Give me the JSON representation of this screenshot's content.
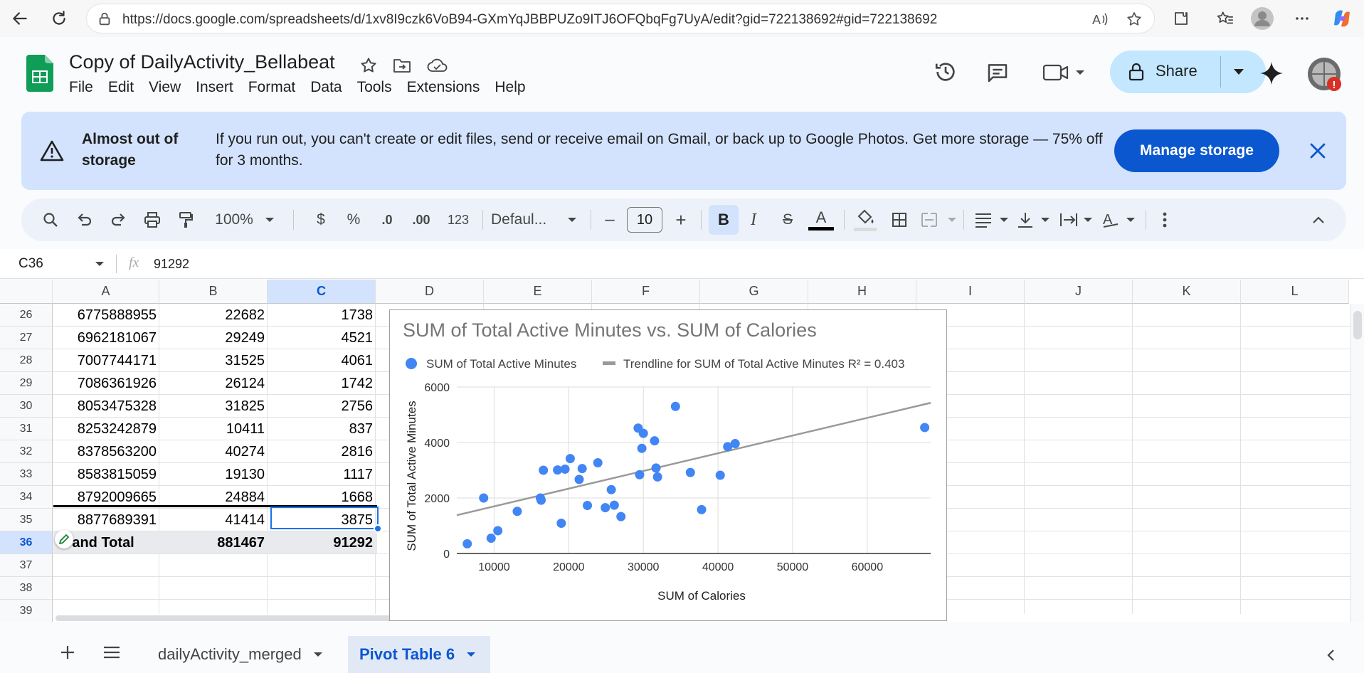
{
  "browser": {
    "url": "https://docs.google.com/spreadsheets/d/1xv8I9czk6VoB94-GXmYqJBBPUZo9ITJ6OFQbqFg7UyA/edit?gid=722138692#gid=722138692"
  },
  "doc": {
    "title": "Copy of DailyActivity_Bellabeat",
    "menu": [
      "File",
      "Edit",
      "View",
      "Insert",
      "Format",
      "Data",
      "Tools",
      "Extensions",
      "Help"
    ],
    "share_label": "Share"
  },
  "banner": {
    "title": "Almost out of storage",
    "message": "If you run out, you can't create or edit files, send or receive email on Gmail, or back up to Google Photos. Get more storage — 75% off for 3 months.",
    "button": "Manage storage"
  },
  "toolbar": {
    "zoom": "100%",
    "currency": "$",
    "percent": "%",
    "dec_decrease": ".0",
    "dec_increase": ".00",
    "number_format": "123",
    "font": "Defaul...",
    "font_size": "10",
    "minus": "–",
    "plus": "+",
    "bold": "B",
    "italic": "I",
    "strike": "S",
    "text_color": "A"
  },
  "formula": {
    "cell_ref": "C36",
    "fx": "fx",
    "value": "91292"
  },
  "grid": {
    "columns": [
      "A",
      "B",
      "C",
      "D",
      "E",
      "F",
      "G",
      "H",
      "I",
      "J",
      "K",
      "L"
    ],
    "rows": [
      {
        "num": "26",
        "a": "6775888955",
        "b": "22682",
        "c": "1738"
      },
      {
        "num": "27",
        "a": "6962181067",
        "b": "29249",
        "c": "4521"
      },
      {
        "num": "28",
        "a": "7007744171",
        "b": "31525",
        "c": "4061"
      },
      {
        "num": "29",
        "a": "7086361926",
        "b": "26124",
        "c": "1742"
      },
      {
        "num": "30",
        "a": "8053475328",
        "b": "31825",
        "c": "2756"
      },
      {
        "num": "31",
        "a": "8253242879",
        "b": "10411",
        "c": "837"
      },
      {
        "num": "32",
        "a": "8378563200",
        "b": "40274",
        "c": "2816"
      },
      {
        "num": "33",
        "a": "8583815059",
        "b": "19130",
        "c": "1117"
      },
      {
        "num": "34",
        "a": "8792009665",
        "b": "24884",
        "c": "1668"
      },
      {
        "num": "35",
        "a": "8877689391",
        "b": "41414",
        "c": "3875"
      },
      {
        "num": "36",
        "a": "Grand Total",
        "b": "881467",
        "c": "91292"
      },
      {
        "num": "37",
        "a": "",
        "b": "",
        "c": ""
      },
      {
        "num": "38",
        "a": "",
        "b": "",
        "c": ""
      },
      {
        "num": "39",
        "a": "",
        "b": "",
        "c": ""
      }
    ]
  },
  "sheets": {
    "tabs": [
      "dailyActivity_merged",
      "Pivot Table 6"
    ],
    "active": "Pivot Table 6"
  },
  "colors": {
    "accent": "#0b57d0",
    "banner_bg": "#d3e3fd",
    "share_bg": "#c2e7ff",
    "point": "#4285f4",
    "trendline": "#999999",
    "sheets_green": "#0f9d58"
  },
  "chart_data": {
    "type": "scatter",
    "title": "SUM of Total Active Minutes vs. SUM of Calories",
    "xlabel": "SUM of Calories",
    "ylabel": "SUM of Total Active Minutes",
    "xlim": [
      5000,
      68500
    ],
    "ylim": [
      0,
      6000
    ],
    "xticks": [
      10000,
      20000,
      30000,
      40000,
      50000,
      60000
    ],
    "yticks": [
      0,
      2000,
      4000,
      6000
    ],
    "grid": true,
    "legend_position": "top",
    "series": [
      {
        "name": "SUM of Total Active Minutes",
        "points": [
          [
            6400,
            350
          ],
          [
            8600,
            2000
          ],
          [
            9600,
            550
          ],
          [
            10500,
            820
          ],
          [
            13100,
            1520
          ],
          [
            16200,
            2000
          ],
          [
            16300,
            1920
          ],
          [
            16600,
            3000
          ],
          [
            18500,
            3010
          ],
          [
            19000,
            1090
          ],
          [
            19500,
            3040
          ],
          [
            20200,
            3420
          ],
          [
            21400,
            2670
          ],
          [
            21800,
            3060
          ],
          [
            22500,
            1730
          ],
          [
            23900,
            3270
          ],
          [
            24900,
            1650
          ],
          [
            25700,
            2300
          ],
          [
            26100,
            1740
          ],
          [
            27000,
            1330
          ],
          [
            29300,
            4520
          ],
          [
            29500,
            2840
          ],
          [
            29800,
            3790
          ],
          [
            30000,
            4330
          ],
          [
            31500,
            4060
          ],
          [
            31700,
            3080
          ],
          [
            31900,
            2760
          ],
          [
            34300,
            5300
          ],
          [
            36300,
            2920
          ],
          [
            37800,
            1580
          ],
          [
            40300,
            2820
          ],
          [
            41300,
            3850
          ],
          [
            42300,
            3960
          ],
          [
            67700,
            4540
          ]
        ]
      }
    ],
    "trendline": {
      "name": "Trendline for SUM of Total Active Minutes R² = 0.403",
      "from": [
        5000,
        1380
      ],
      "to": [
        68500,
        5430
      ]
    }
  }
}
